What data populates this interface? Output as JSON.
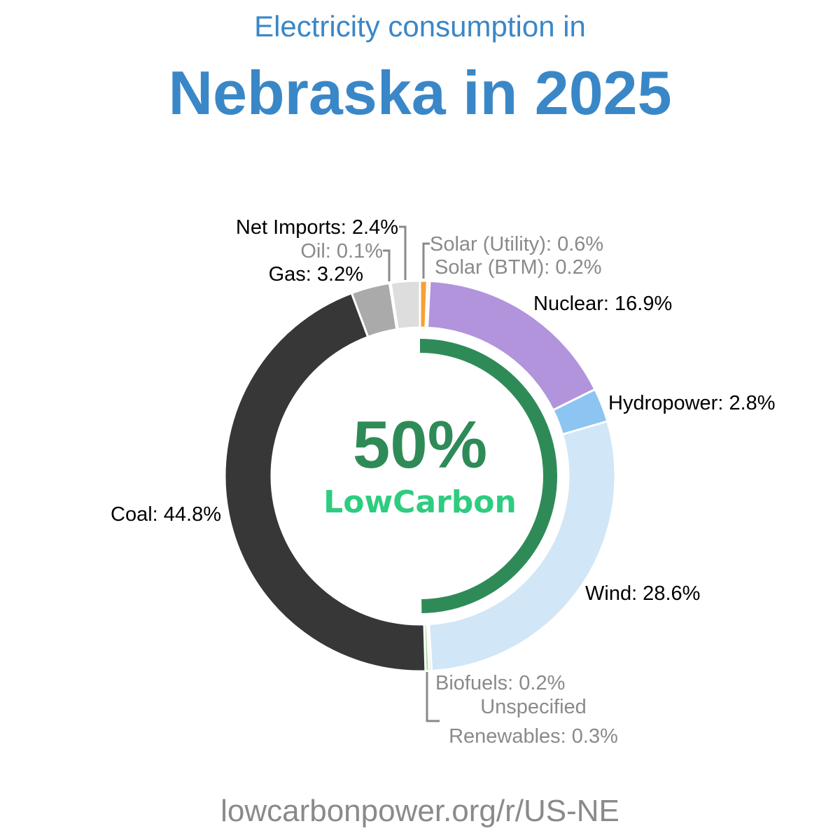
{
  "header": {
    "subtitle": "Electricity consumption in",
    "title": "Nebraska in 2025"
  },
  "center": {
    "percent": "50%",
    "brand": "LowCarbon",
    "low_carbon_fraction": 0.5
  },
  "footer": {
    "url": "lowcarbonpower.org/r/US-NE"
  },
  "colors": {
    "title": "#3a87c8",
    "low_carbon_arc": "#2e8b57",
    "brand": "#2ecc7f",
    "muted_label": "#8a8a8a"
  },
  "chart_data": {
    "type": "pie",
    "donut": true,
    "slices": [
      {
        "name": "Solar (Utility)",
        "value": 0.6,
        "label": "Solar (Utility): 0.6%",
        "color": "#f4a236",
        "muted": true
      },
      {
        "name": "Solar (BTM)",
        "value": 0.2,
        "label": "Solar (BTM): 0.2%",
        "color": "#f6c35a",
        "muted": true
      },
      {
        "name": "Nuclear",
        "value": 16.9,
        "label": "Nuclear: 16.9%",
        "color": "#b294dc",
        "muted": false
      },
      {
        "name": "Hydropower",
        "value": 2.8,
        "label": "Hydropower: 2.8%",
        "color": "#8cc4f2",
        "muted": false
      },
      {
        "name": "Wind",
        "value": 28.6,
        "label": "Wind: 28.6%",
        "color": "#d1e6f6",
        "muted": false
      },
      {
        "name": "Biofuels",
        "value": 0.2,
        "label": "Biofuels: 0.2%",
        "color": "#8fbf7a",
        "muted": true
      },
      {
        "name": "Unspecified Renewables",
        "value": 0.3,
        "label_lines": [
          "Unspecified",
          "Renewables: 0.3%"
        ],
        "color": "#a9d99a",
        "muted": true
      },
      {
        "name": "Coal",
        "value": 44.8,
        "label": "Coal: 44.8%",
        "color": "#373737",
        "muted": false
      },
      {
        "name": "Gas",
        "value": 3.2,
        "label": "Gas: 3.2%",
        "color": "#aaaaaa",
        "muted": false
      },
      {
        "name": "Oil",
        "value": 0.1,
        "label": "Oil: 0.1%",
        "color": "#777777",
        "muted": true
      },
      {
        "name": "Net Imports",
        "value": 2.4,
        "label": "Net Imports: 2.4%",
        "color": "#dddddd",
        "muted": false
      }
    ]
  }
}
